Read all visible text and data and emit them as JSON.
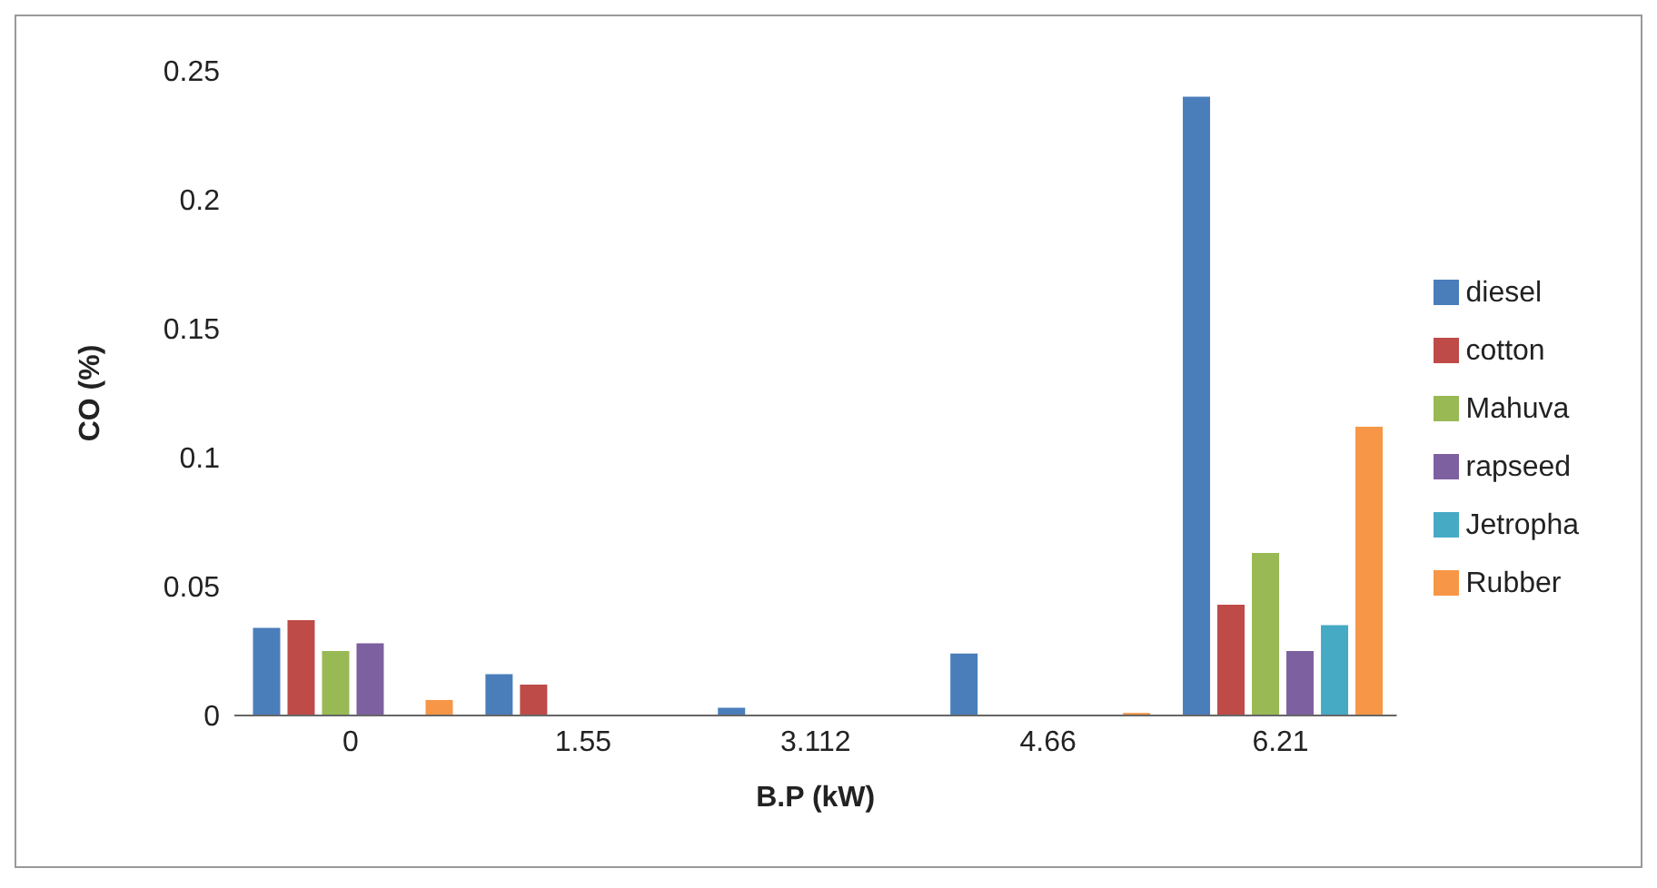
{
  "chart_data": {
    "type": "bar",
    "xlabel": "B.P (kW)",
    "ylabel": "CO (%)",
    "categories": [
      "0",
      "1.55",
      "3.112",
      "4.66",
      "6.21"
    ],
    "series": [
      {
        "name": "diesel",
        "color": "#4a7ebb",
        "values": [
          0.034,
          0.016,
          0.003,
          0.024,
          0.24
        ]
      },
      {
        "name": "cotton",
        "color": "#be4b48",
        "values": [
          0.037,
          0.012,
          0,
          0,
          0.043
        ]
      },
      {
        "name": "Mahuva",
        "color": "#98b954",
        "values": [
          0.025,
          0,
          0,
          0,
          0.063
        ]
      },
      {
        "name": "rapseed",
        "color": "#7d60a0",
        "values": [
          0.028,
          0,
          0,
          0,
          0.025
        ]
      },
      {
        "name": "Jetropha",
        "color": "#46aac5",
        "values": [
          0,
          0,
          0,
          0,
          0.035
        ]
      },
      {
        "name": "Rubber",
        "color": "#f79646",
        "values": [
          0.006,
          0,
          0,
          0.001,
          0.112
        ]
      }
    ],
    "ylim": [
      0,
      0.25
    ],
    "yticks": [
      0,
      0.05,
      0.1,
      0.15,
      0.2,
      0.25
    ],
    "grid": false,
    "legend": "right"
  }
}
